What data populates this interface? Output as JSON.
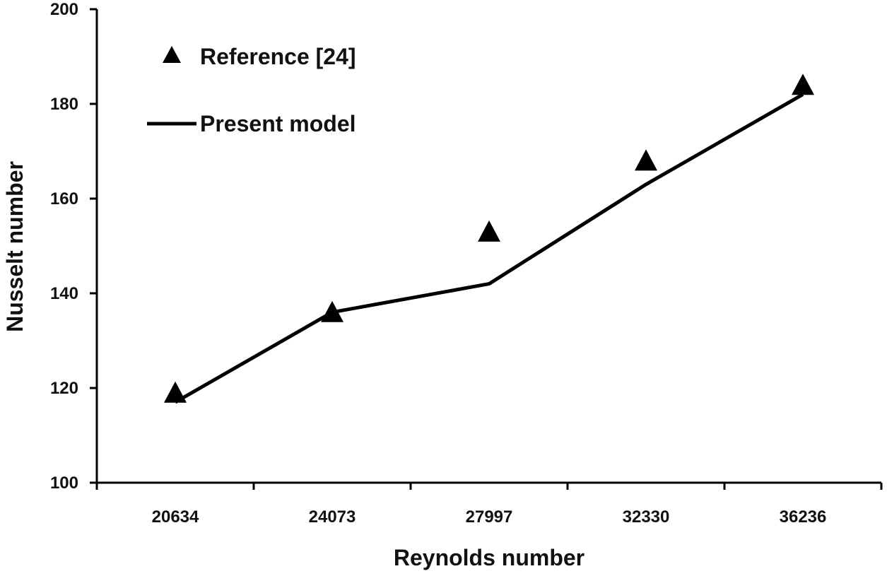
{
  "chart_data": {
    "type": "line",
    "categories": [
      "20634",
      "24073",
      "27997",
      "32330",
      "36236"
    ],
    "series": [
      {
        "name": "Reference [24]",
        "marker": "triangle",
        "line": false,
        "values": [
          119,
          136,
          153,
          168,
          184
        ]
      },
      {
        "name": "Present model",
        "marker": "none",
        "line": true,
        "values": [
          117,
          136,
          142,
          163,
          182
        ]
      }
    ],
    "xlabel": "Reynolds number",
    "ylabel": "Nusselt number",
    "ylim": [
      100,
      200
    ],
    "yticks": [
      100,
      120,
      140,
      160,
      180,
      200
    ],
    "grid": false,
    "legend_position": "top-left",
    "colors": {
      "series": "#000000",
      "axis": "#000000",
      "background": "#ffffff"
    }
  }
}
